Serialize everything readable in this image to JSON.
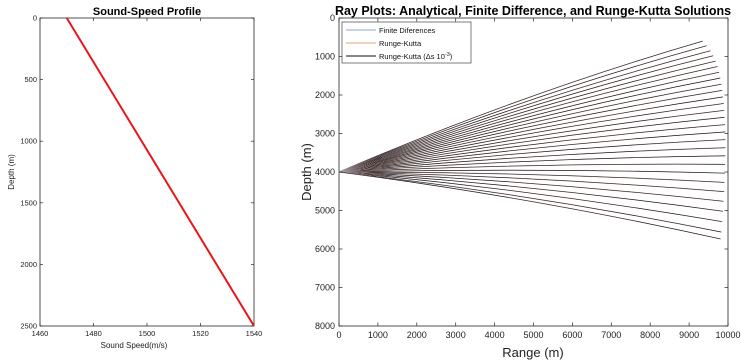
{
  "chart_data": [
    {
      "type": "line",
      "title": "Sound-Speed Profile",
      "xlabel": "Sound Speed(m/s)",
      "ylabel": "Depth (m)",
      "xlim": [
        1460,
        1540
      ],
      "ylim": [
        0,
        2500
      ],
      "y_reversed": true,
      "xticks": [
        1460,
        1480,
        1500,
        1520,
        1540
      ],
      "yticks": [
        0,
        500,
        1000,
        1500,
        2000,
        2500
      ],
      "grid": false,
      "series": [
        {
          "x": [
            1470,
            1540
          ],
          "y": [
            0,
            2500
          ],
          "color": "#e8161b"
        }
      ]
    },
    {
      "type": "line",
      "title": "Ray Plots: Analytical, Finite Difference, and Runge-Kutta Solutions",
      "xlabel": "Range (m)",
      "ylabel": "Depth (m)",
      "xlim": [
        0,
        10000
      ],
      "ylim": [
        0,
        8000
      ],
      "y_reversed": true,
      "xticks": [
        0,
        1000,
        2000,
        3000,
        4000,
        5000,
        6000,
        7000,
        8000,
        9000,
        10000
      ],
      "yticks": [
        0,
        1000,
        2000,
        3000,
        4000,
        5000,
        6000,
        7000,
        8000
      ],
      "grid": false,
      "legend_position": "top-left",
      "legend": [
        {
          "label": "Finite Diferences",
          "color": "#8da4d6"
        },
        {
          "label": "Runge-Kutta",
          "color": "#e3a07a"
        },
        {
          "label_main": "Runge-Kutta (",
          "label_delta": "Δ",
          "label_mid": "s 10",
          "label_exp": "-3",
          "label_end": ")",
          "color": "#111111"
        }
      ],
      "rays": {
        "source_range": 0,
        "source_depth": 4000,
        "count": 28,
        "end_points": [
          [
            9350,
            600
          ],
          [
            9450,
            720
          ],
          [
            9550,
            850
          ],
          [
            9620,
            980
          ],
          [
            9680,
            1120
          ],
          [
            9730,
            1260
          ],
          [
            9770,
            1410
          ],
          [
            9800,
            1560
          ],
          [
            9830,
            1720
          ],
          [
            9850,
            1880
          ],
          [
            9870,
            2050
          ],
          [
            9890,
            2220
          ],
          [
            9900,
            2400
          ],
          [
            9910,
            2580
          ],
          [
            9920,
            2770
          ],
          [
            9930,
            2960
          ],
          [
            9930,
            3160
          ],
          [
            9930,
            3370
          ],
          [
            9930,
            3580
          ],
          [
            9920,
            3800
          ],
          [
            9920,
            4030
          ],
          [
            9910,
            4270
          ],
          [
            9900,
            4510
          ],
          [
            9880,
            4760
          ],
          [
            9870,
            5020
          ],
          [
            9850,
            5290
          ],
          [
            9830,
            5560
          ],
          [
            9810,
            5740
          ]
        ]
      }
    }
  ]
}
